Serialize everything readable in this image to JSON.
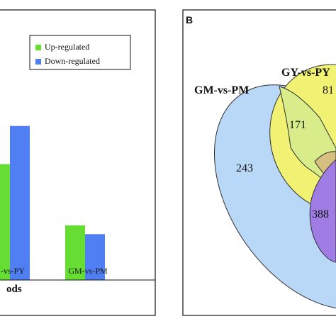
{
  "panel_a": {
    "legend": {
      "up_label": "Up-regulated",
      "down_label": "Down-regulated"
    },
    "xaxis_title_fragment": "ods",
    "colors": {
      "up": "#66dd33",
      "down": "#4f7ff2"
    }
  },
  "panel_b": {
    "label": "B",
    "set_labels": {
      "gm_pm": "GM-vs-PM",
      "gy_py": "GY-vs-PY"
    },
    "region_values": {
      "gm_pm_only": "243",
      "gm_gy_overlap": "171",
      "gy_py_only": "81",
      "purple_region": "388"
    },
    "colors": {
      "gm_pm": "#b9d7f6",
      "gy_py": "#f1f274",
      "overlap_green": "#d8ed8a",
      "purple": "#9f7de5",
      "tan": "#d6bf80"
    }
  },
  "chart_data": {
    "type": "bar",
    "categories": [
      "-vs-PY",
      "GM-vs-PM"
    ],
    "series": [
      {
        "name": "Up-regulated",
        "values": [
          450,
          212
        ]
      },
      {
        "name": "Down-regulated",
        "values": [
          598,
          178
        ]
      }
    ],
    "title": "",
    "xlabel": "ods",
    "ylabel": "",
    "ylim": [
      0,
      900
    ],
    "legend": "top-right",
    "grid": false
  }
}
